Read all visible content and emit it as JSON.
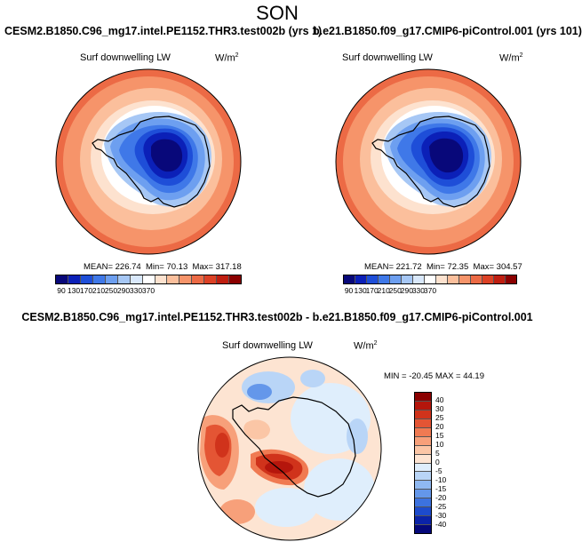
{
  "title": "SON",
  "panels": [
    {
      "case": "CESM2.B1850.C96_mg17.intel.PE1152.THR3.test002b (yrs 1)",
      "variable": "Surf downwelling LW",
      "units": "W/m",
      "units_exp": "2",
      "mean": "MEAN= 226.74",
      "min": "Min= 70.13",
      "max": "Max= 317.18"
    },
    {
      "case": "b.e21.B1850.f09_g17.CMIP6-piControl.001 (yrs 101)",
      "variable": "Surf downwelling LW",
      "units": "W/m",
      "units_exp": "2",
      "mean": "MEAN= 221.72",
      "min": "Min= 72.35",
      "max": "Max= 304.57"
    }
  ],
  "diff": {
    "case": "CESM2.B1850.C96_mg17.intel.PE1152.THR3.test002b - b.e21.B1850.f09_g17.CMIP6-piControl.001",
    "variable": "Surf downwelling LW",
    "units": "W/m",
    "units_exp": "2",
    "minmax": "MIN = -20.45  MAX =  44.19"
  },
  "colorbar_abs": {
    "labels": [
      "90",
      "130",
      "170",
      "210",
      "250",
      "290",
      "330",
      "370"
    ],
    "colors": [
      "#08087a",
      "#0b20b8",
      "#1e4ed8",
      "#3f78e8",
      "#6d9ff0",
      "#a6c7f5",
      "#d9e8fb",
      "#ffffff",
      "#fde2cf",
      "#fbbf9c",
      "#f6946a",
      "#ec6a45",
      "#dc4125",
      "#bf1e10",
      "#8b0000"
    ]
  },
  "colorbar_diff": {
    "labels": [
      "40",
      "30",
      "25",
      "20",
      "15",
      "10",
      "5",
      "0",
      "-5",
      "-10",
      "-15",
      "-20",
      "-25",
      "-30",
      "-40"
    ],
    "colors": [
      "#8b0000",
      "#b5160c",
      "#d0331b",
      "#e45534",
      "#f07a52",
      "#f7a07a",
      "#fbc6a6",
      "#fde4d2",
      "#dfeefc",
      "#b9d5f7",
      "#8fb8f1",
      "#6497ea",
      "#3c72df",
      "#1d4bcc",
      "#0b23a8",
      "#05087a"
    ]
  },
  "icons": [
    "globe-map-icon"
  ]
}
